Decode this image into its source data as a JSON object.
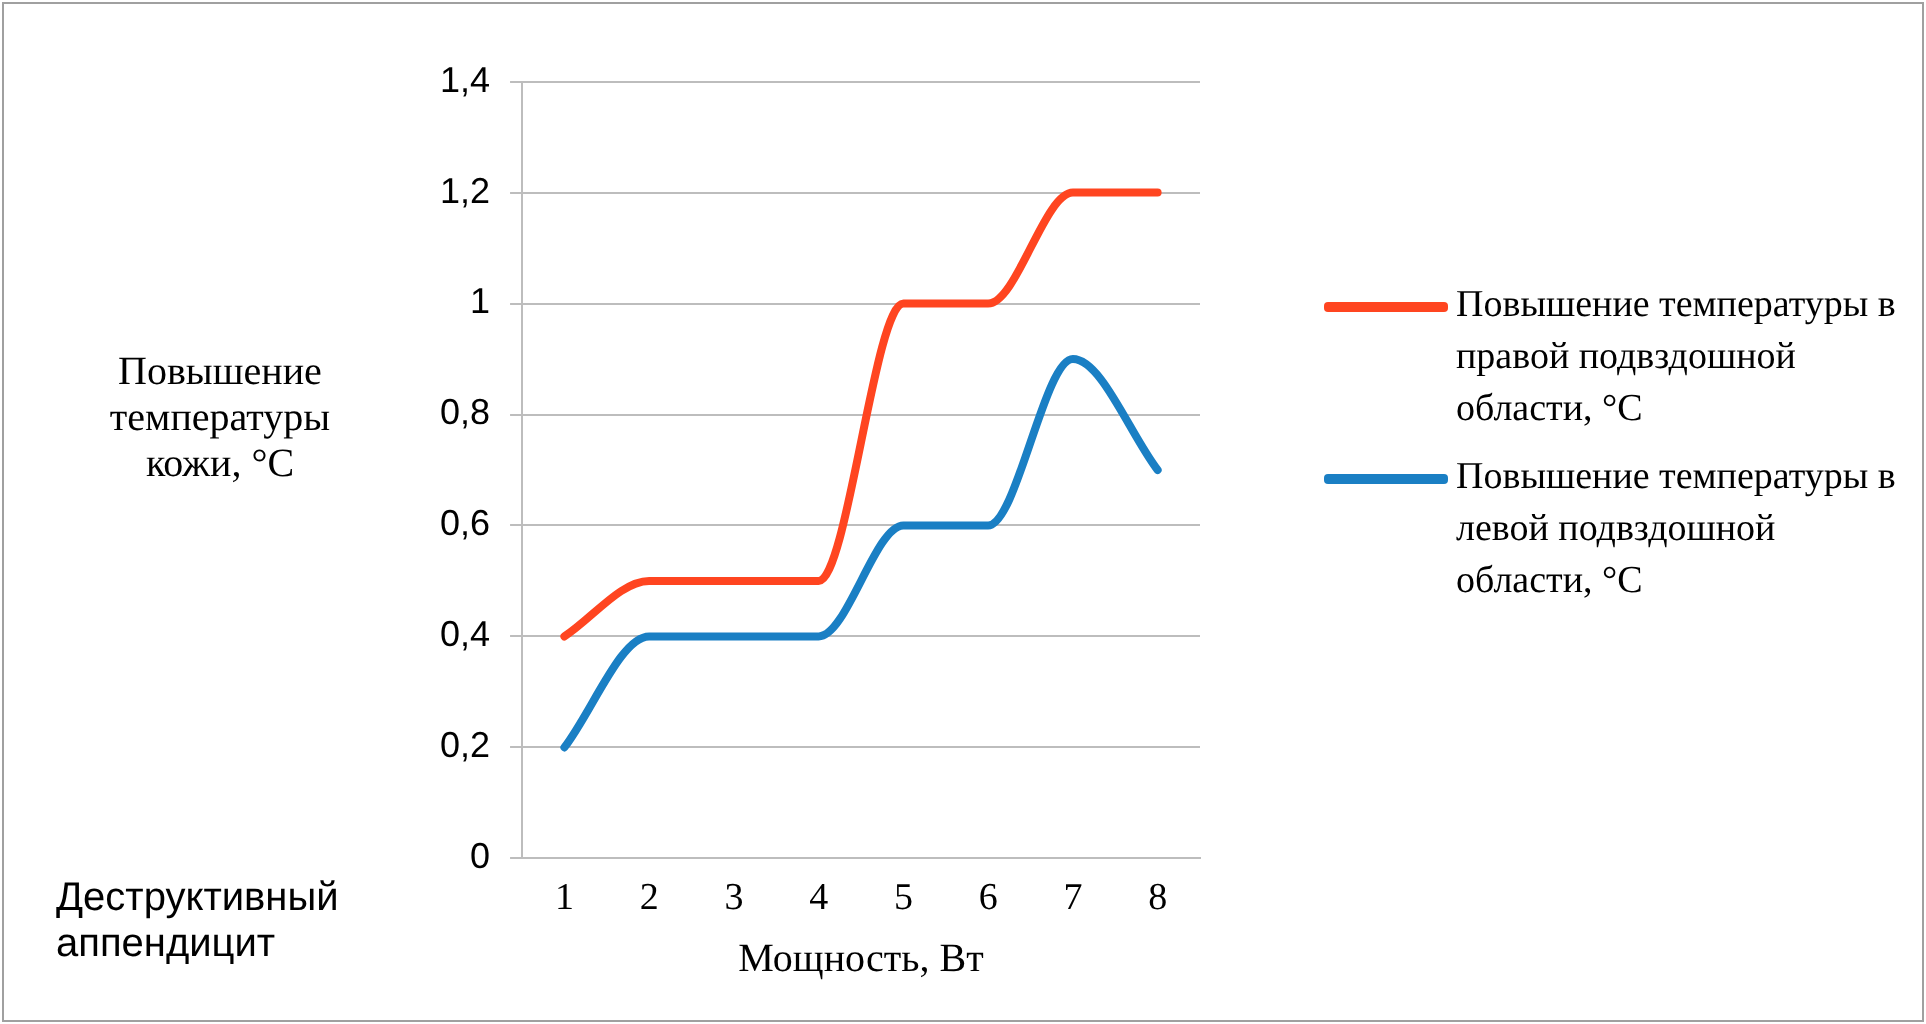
{
  "chart_data": {
    "type": "line",
    "ylabel": "Повышение температуры кожи, °C",
    "xlabel": "Мощность, Вт",
    "categories": [
      "1",
      "2",
      "3",
      "4",
      "5",
      "6",
      "7",
      "8"
    ],
    "series": [
      {
        "name": "Повышение температуры в правой подвздошной области, °C",
        "color": "#ff4520",
        "values": [
          0.4,
          0.5,
          0.5,
          0.5,
          1.0,
          1.0,
          1.2,
          1.2
        ]
      },
      {
        "name": "Повышение температуры в левой подвздошной области, °C",
        "color": "#1a7fc4",
        "values": [
          0.2,
          0.4,
          0.4,
          0.4,
          0.6,
          0.6,
          0.9,
          0.7
        ]
      }
    ],
    "ylim": [
      0,
      1.4
    ],
    "yticks": [
      {
        "value": 0,
        "label": "0"
      },
      {
        "value": 0.2,
        "label": "0,2"
      },
      {
        "value": 0.4,
        "label": "0,4"
      },
      {
        "value": 0.6,
        "label": "0,6"
      },
      {
        "value": 0.8,
        "label": "0,8"
      },
      {
        "value": 1,
        "label": "1"
      },
      {
        "value": 1.2,
        "label": "1,2"
      },
      {
        "value": 1.4,
        "label": "1,4"
      }
    ],
    "grid": "y",
    "legend": "right",
    "marker": "none",
    "line_style": "solid",
    "annotations": [
      "Деструктивный аппендицит"
    ]
  }
}
